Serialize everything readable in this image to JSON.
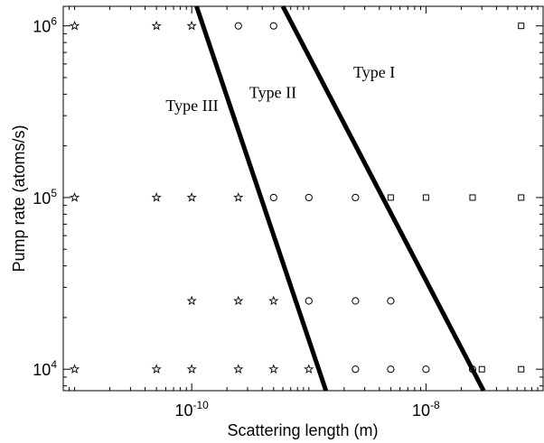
{
  "chart_data": {
    "type": "scatter",
    "title": "",
    "xlabel": "Scattering length (m)",
    "ylabel": "Pump rate (atoms/s)",
    "x_scale": "log",
    "y_scale": "log",
    "xlim": [
      8e-12,
      1e-07
    ],
    "ylim": [
      7500,
      1300000
    ],
    "x_ticks": [
      {
        "value": 1e-10,
        "base": "10",
        "exp": "-10"
      },
      {
        "value": 1e-08,
        "base": "10",
        "exp": "-8"
      }
    ],
    "y_ticks": [
      {
        "value": 10000,
        "base": "10",
        "exp": "4"
      },
      {
        "value": 100000,
        "base": "10",
        "exp": "5"
      },
      {
        "value": 1000000,
        "base": "10",
        "exp": "6"
      }
    ],
    "grid": false,
    "series": [
      {
        "marker": "star",
        "points": [
          {
            "x": 1e-11,
            "y": 1000000
          },
          {
            "x": 5e-11,
            "y": 1000000
          },
          {
            "x": 1e-10,
            "y": 1000000
          },
          {
            "x": 1e-11,
            "y": 100000
          },
          {
            "x": 5e-11,
            "y": 100000
          },
          {
            "x": 1e-10,
            "y": 100000
          },
          {
            "x": 2.5e-10,
            "y": 100000
          },
          {
            "x": 1e-10,
            "y": 25000
          },
          {
            "x": 2.5e-10,
            "y": 25000
          },
          {
            "x": 5e-10,
            "y": 25000
          },
          {
            "x": 1e-11,
            "y": 10000
          },
          {
            "x": 5e-11,
            "y": 10000
          },
          {
            "x": 1e-10,
            "y": 10000
          },
          {
            "x": 2.5e-10,
            "y": 10000
          },
          {
            "x": 5e-10,
            "y": 10000
          },
          {
            "x": 1e-09,
            "y": 10000
          }
        ]
      },
      {
        "marker": "circle",
        "points": [
          {
            "x": 2.5e-10,
            "y": 1000000
          },
          {
            "x": 5e-10,
            "y": 1000000
          },
          {
            "x": 5e-10,
            "y": 100000
          },
          {
            "x": 1e-09,
            "y": 100000
          },
          {
            "x": 2.5e-09,
            "y": 100000
          },
          {
            "x": 1e-09,
            "y": 25000
          },
          {
            "x": 2.5e-09,
            "y": 25000
          },
          {
            "x": 5e-09,
            "y": 25000
          },
          {
            "x": 2.5e-09,
            "y": 10000
          },
          {
            "x": 5e-09,
            "y": 10000
          },
          {
            "x": 1e-08,
            "y": 10000
          },
          {
            "x": 2.5e-08,
            "y": 10000
          }
        ]
      },
      {
        "marker": "square",
        "points": [
          {
            "x": 6.5e-08,
            "y": 1000000
          },
          {
            "x": 5e-09,
            "y": 100000
          },
          {
            "x": 1e-08,
            "y": 100000
          },
          {
            "x": 2.5e-08,
            "y": 100000
          },
          {
            "x": 6.5e-08,
            "y": 100000
          },
          {
            "x": 3e-08,
            "y": 10000
          },
          {
            "x": 6.5e-08,
            "y": 10000
          }
        ]
      }
    ],
    "boundaries": [
      {
        "points": [
          {
            "x": 1.1e-10,
            "y": 1300000
          },
          {
            "x": 1.4e-09,
            "y": 7500
          }
        ]
      },
      {
        "points": [
          {
            "x": 6e-10,
            "y": 1300000
          },
          {
            "x": 3.1e-08,
            "y": 7500
          }
        ]
      }
    ],
    "annotations": [
      {
        "text": "Type III",
        "x": 6e-11,
        "y": 320000
      },
      {
        "text": "Type II",
        "x": 3.1e-10,
        "y": 380000
      },
      {
        "text": "Type I",
        "x": 2.4e-09,
        "y": 500000
      }
    ]
  }
}
